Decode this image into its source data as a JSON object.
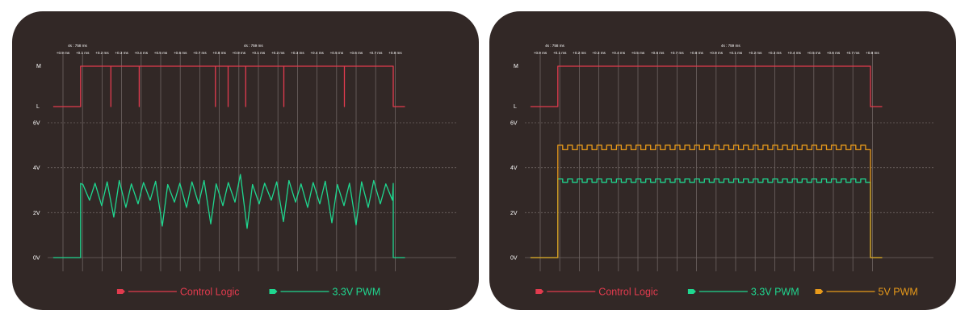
{
  "colors": {
    "background": "#322826",
    "grid": "#6e6462",
    "axis_text": "#ffffff",
    "control": "#e23b4e",
    "pwm33": "#1fd68f",
    "pwm5": "#e89a1a"
  },
  "time_ticks": [
    "+0.9 ms",
    "+0.1 ms",
    "+0.2 ms",
    "+0.3 ms",
    "+0.4 ms",
    "+0.5 ms",
    "+0.6 ms",
    "+0.7 ms",
    "+0.8 ms",
    "+0.9 ms",
    "+0.1 ms",
    "+0.2 ms",
    "+0.3 ms",
    "+0.4 ms",
    "+0.5 ms",
    "+0.6 ms",
    "+0.7 ms",
    "+0.8 ms"
  ],
  "time_markers": [
    {
      "label": "4s : 758 ms",
      "after_tick": 0
    },
    {
      "label": "4s : 759 ms",
      "after_tick": 9
    }
  ],
  "chart_data": [
    {
      "type": "line",
      "name": "left-panel",
      "logic_axis": {
        "labels": [
          "M",
          "L"
        ]
      },
      "voltage_axis": {
        "labels": [
          "6V",
          "4V",
          "2V",
          "0V"
        ],
        "ylim": [
          0,
          6
        ]
      },
      "x_ticks": 18,
      "series": [
        {
          "name": "Control Logic",
          "color": "#e23b4e",
          "kind": "logic",
          "x_range": [
            -0.5,
            17.5
          ],
          "high_from": 0.9,
          "high_to": 16.9,
          "glitches": [
            2.45,
            3.9,
            7.8,
            8.45,
            9.35,
            11.3,
            14.4
          ]
        },
        {
          "name": "3.3V PWM",
          "color": "#1fd68f",
          "kind": "pwm-noisy",
          "x_range": [
            -0.5,
            17.5
          ],
          "rise": 0.9,
          "fall": 16.9,
          "level": 3.3,
          "period": 0.62,
          "dip_depth": 0.75,
          "deep_dips": [
            {
              "x": 2.1,
              "v": 1.8
            },
            {
              "x": 4.45,
              "v": 1.4
            },
            {
              "x": 7.5,
              "v": 1.5
            },
            {
              "x": 8.95,
              "v": 1.3
            },
            {
              "x": 10.7,
              "v": 1.6
            },
            {
              "x": 13.2,
              "v": 1.55
            },
            {
              "x": 14.6,
              "v": 1.45
            }
          ],
          "spike": {
            "x": 9.1,
            "v": 3.7
          }
        }
      ],
      "legend": [
        "Control Logic",
        "3.3V PWM"
      ]
    },
    {
      "type": "line",
      "name": "right-panel",
      "logic_axis": {
        "labels": [
          "M",
          "L"
        ]
      },
      "voltage_axis": {
        "labels": [
          "6V",
          "4V",
          "2V",
          "0V"
        ],
        "ylim": [
          0,
          6
        ]
      },
      "x_ticks": 18,
      "series": [
        {
          "name": "Control Logic",
          "color": "#e23b4e",
          "kind": "logic",
          "x_range": [
            -0.5,
            17.5
          ],
          "high_from": 0.9,
          "high_to": 16.9,
          "glitches": []
        },
        {
          "name": "3.3V PWM",
          "color": "#1fd68f",
          "kind": "pwm-square",
          "x_range": [
            -0.5,
            17.5
          ],
          "rise": 0.9,
          "fall": 16.9,
          "high": 3.5,
          "low": 3.35,
          "period": 0.5
        },
        {
          "name": "5V PWM",
          "color": "#e89a1a",
          "kind": "pwm-square",
          "x_range": [
            -0.5,
            17.5
          ],
          "rise": 0.9,
          "fall": 16.9,
          "high": 5.0,
          "low": 4.8,
          "period": 0.5
        }
      ],
      "legend": [
        "Control Logic",
        "3.3V PWM",
        "5V PWM"
      ]
    }
  ]
}
